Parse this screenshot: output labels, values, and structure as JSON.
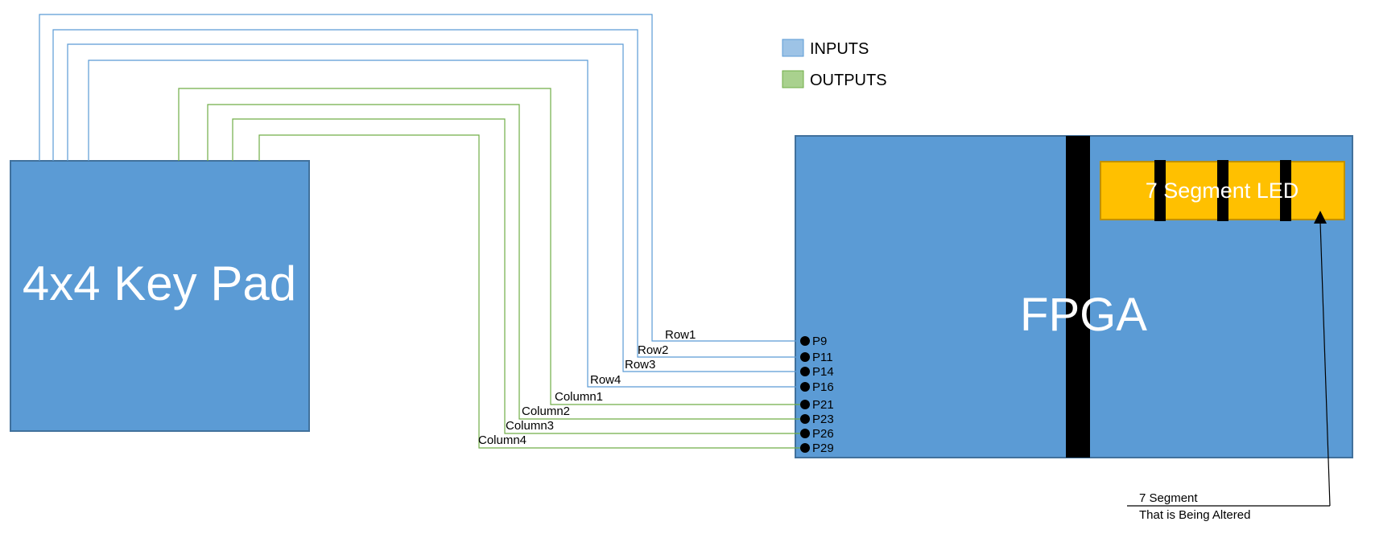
{
  "legend": {
    "inputs": {
      "label": "INPUTS",
      "color": "#9dc3e6"
    },
    "outputs": {
      "label": "OUTPUTS",
      "color": "#a9d18e"
    }
  },
  "keypad": {
    "label": "4x4 Key Pad",
    "color": "#5b9bd5"
  },
  "fpga": {
    "label": "FPGA",
    "color": "#5b9bd5"
  },
  "led": {
    "label": "7 Segment LED",
    "color": "#ffc000"
  },
  "annotation": {
    "line1": "7 Segment",
    "line2": "That is Being Altered"
  },
  "connections": [
    {
      "signal": "Row1",
      "pin": "P9",
      "kind": "input"
    },
    {
      "signal": "Row2",
      "pin": "P11",
      "kind": "input"
    },
    {
      "signal": "Row3",
      "pin": "P14",
      "kind": "input"
    },
    {
      "signal": "Row4",
      "pin": "P16",
      "kind": "input"
    },
    {
      "signal": "Column1",
      "pin": "P21",
      "kind": "output"
    },
    {
      "signal": "Column2",
      "pin": "P23",
      "kind": "output"
    },
    {
      "signal": "Column3",
      "pin": "P26",
      "kind": "output"
    },
    {
      "signal": "Column4",
      "pin": "P29",
      "kind": "output"
    }
  ]
}
